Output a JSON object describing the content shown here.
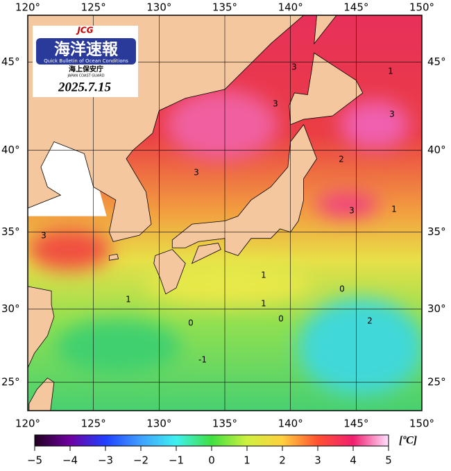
{
  "map": {
    "xlim": [
      120,
      150
    ],
    "ylim": [
      23,
      47.5
    ],
    "xticks": [
      {
        "value": 120,
        "label": "120°"
      },
      {
        "value": 125,
        "label": "125°"
      },
      {
        "value": 130,
        "label": "130°"
      },
      {
        "value": 135,
        "label": "135°"
      },
      {
        "value": 140,
        "label": "140°"
      },
      {
        "value": 145,
        "label": "145°"
      },
      {
        "value": 150,
        "label": "150°"
      }
    ],
    "yticks": [
      {
        "value": 25,
        "label": "25°"
      },
      {
        "value": 30,
        "label": "30°"
      },
      {
        "value": 35,
        "label": "35°"
      },
      {
        "value": 40,
        "label": "40°"
      },
      {
        "value": 45,
        "label": "45°"
      }
    ],
    "grid": true,
    "contour_labels": [
      3,
      3,
      3,
      3,
      3,
      1,
      2,
      3,
      1,
      1,
      1,
      1,
      0,
      0,
      0,
      -1,
      2
    ]
  },
  "logo": {
    "badge": "JCG",
    "title": "海洋速報",
    "subtitle": "Quick Bulletin of Ocean Conditions",
    "agency": "海上保安庁",
    "agency_en": "JAPAN COAST GUARD",
    "date": "2025.7.15"
  },
  "colorbar": {
    "lim": [
      -5,
      5
    ],
    "ticks": [
      {
        "value": -5,
        "label": "−5"
      },
      {
        "value": -4,
        "label": "−4"
      },
      {
        "value": -3,
        "label": "−3"
      },
      {
        "value": -2,
        "label": "−2"
      },
      {
        "value": -1,
        "label": "−1"
      },
      0,
      1,
      2,
      3,
      4,
      5
    ],
    "unit": "[ºC]"
  }
}
